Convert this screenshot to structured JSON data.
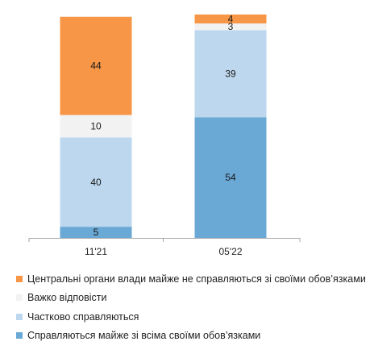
{
  "chart_data": {
    "type": "bar",
    "stacked": true,
    "title": "",
    "xlabel": "",
    "ylabel": "",
    "ylim": [
      0,
      100
    ],
    "grid": false,
    "legend_position": "bottom",
    "categories": [
      "11'21",
      "05'22"
    ],
    "series": [
      {
        "name": "Справляються майже зі всіма своїми обов’язками",
        "values": [
          5,
          54
        ],
        "color": "#6aa8d6"
      },
      {
        "name": "Частково справляються",
        "values": [
          40,
          39
        ],
        "color": "#bdd7ee"
      },
      {
        "name": "Важко відповісти",
        "values": [
          10,
          3
        ],
        "color": "#f2f2f2"
      },
      {
        "name": "Центральні органи влади майже не справляються зі своїми обов’язками",
        "values": [
          44,
          4
        ],
        "color": "#f79646"
      }
    ],
    "legend_order": [
      3,
      2,
      1,
      0
    ]
  }
}
